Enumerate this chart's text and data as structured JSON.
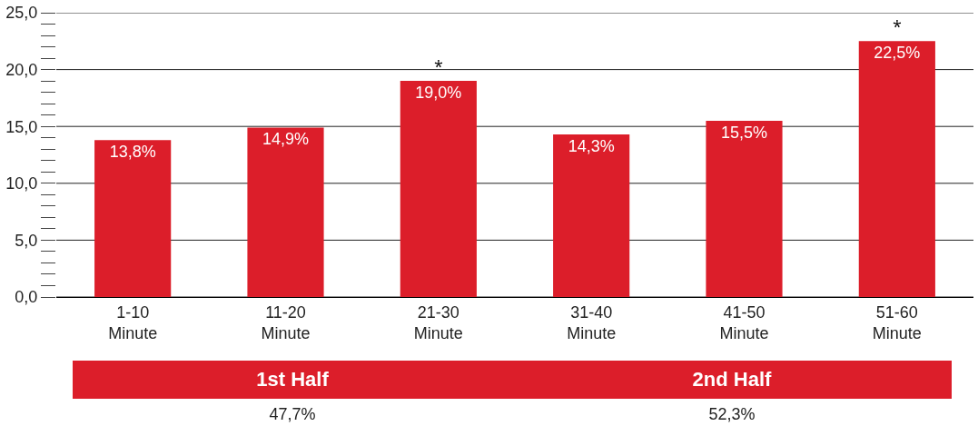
{
  "chart_data": {
    "type": "bar",
    "categories": [
      "1-10 Minute",
      "11-20 Minute",
      "21-30 Minute",
      "31-40 Minute",
      "41-50 Minute",
      "51-60 Minute"
    ],
    "values": [
      13.8,
      14.9,
      19.0,
      14.3,
      15.5,
      22.5
    ],
    "value_labels": [
      "13,8%",
      "14,9%",
      "19,0%",
      "14,3%",
      "15,5%",
      "22,5%"
    ],
    "color": "#dc1e2a",
    "ylim": [
      0,
      25
    ],
    "yticks": [
      {
        "value": 0,
        "label": "0,0"
      },
      {
        "value": 1,
        "label": null
      },
      {
        "value": 2,
        "label": null
      },
      {
        "value": 3,
        "label": null
      },
      {
        "value": 4,
        "label": null
      },
      {
        "value": 5,
        "label": "5,0"
      },
      {
        "value": 6,
        "label": null
      },
      {
        "value": 7,
        "label": null
      },
      {
        "value": 8,
        "label": null
      },
      {
        "value": 9,
        "label": null
      },
      {
        "value": 10,
        "label": "10,0"
      },
      {
        "value": 11,
        "label": null
      },
      {
        "value": 12,
        "label": null
      },
      {
        "value": 13,
        "label": null
      },
      {
        "value": 14,
        "label": null
      },
      {
        "value": 15,
        "label": "15,0"
      },
      {
        "value": 16,
        "label": null
      },
      {
        "value": 17,
        "label": null
      },
      {
        "value": 18,
        "label": null
      },
      {
        "value": 19,
        "label": null
      },
      {
        "value": 20,
        "label": "20,0"
      },
      {
        "value": 21,
        "label": null
      },
      {
        "value": 22,
        "label": null
      },
      {
        "value": 23,
        "label": null
      },
      {
        "value": 24,
        "label": null
      },
      {
        "value": 25,
        "label": "25,0"
      }
    ],
    "grid": "y",
    "annotations": [
      {
        "text": "*",
        "x": "21-30 Minute",
        "y": 19.0
      },
      {
        "text": "*",
        "x": "51-60 Minute",
        "y": 22.5
      },
      "1st Half",
      "2nd Half",
      "47,7%",
      "52,3%"
    ]
  }
}
